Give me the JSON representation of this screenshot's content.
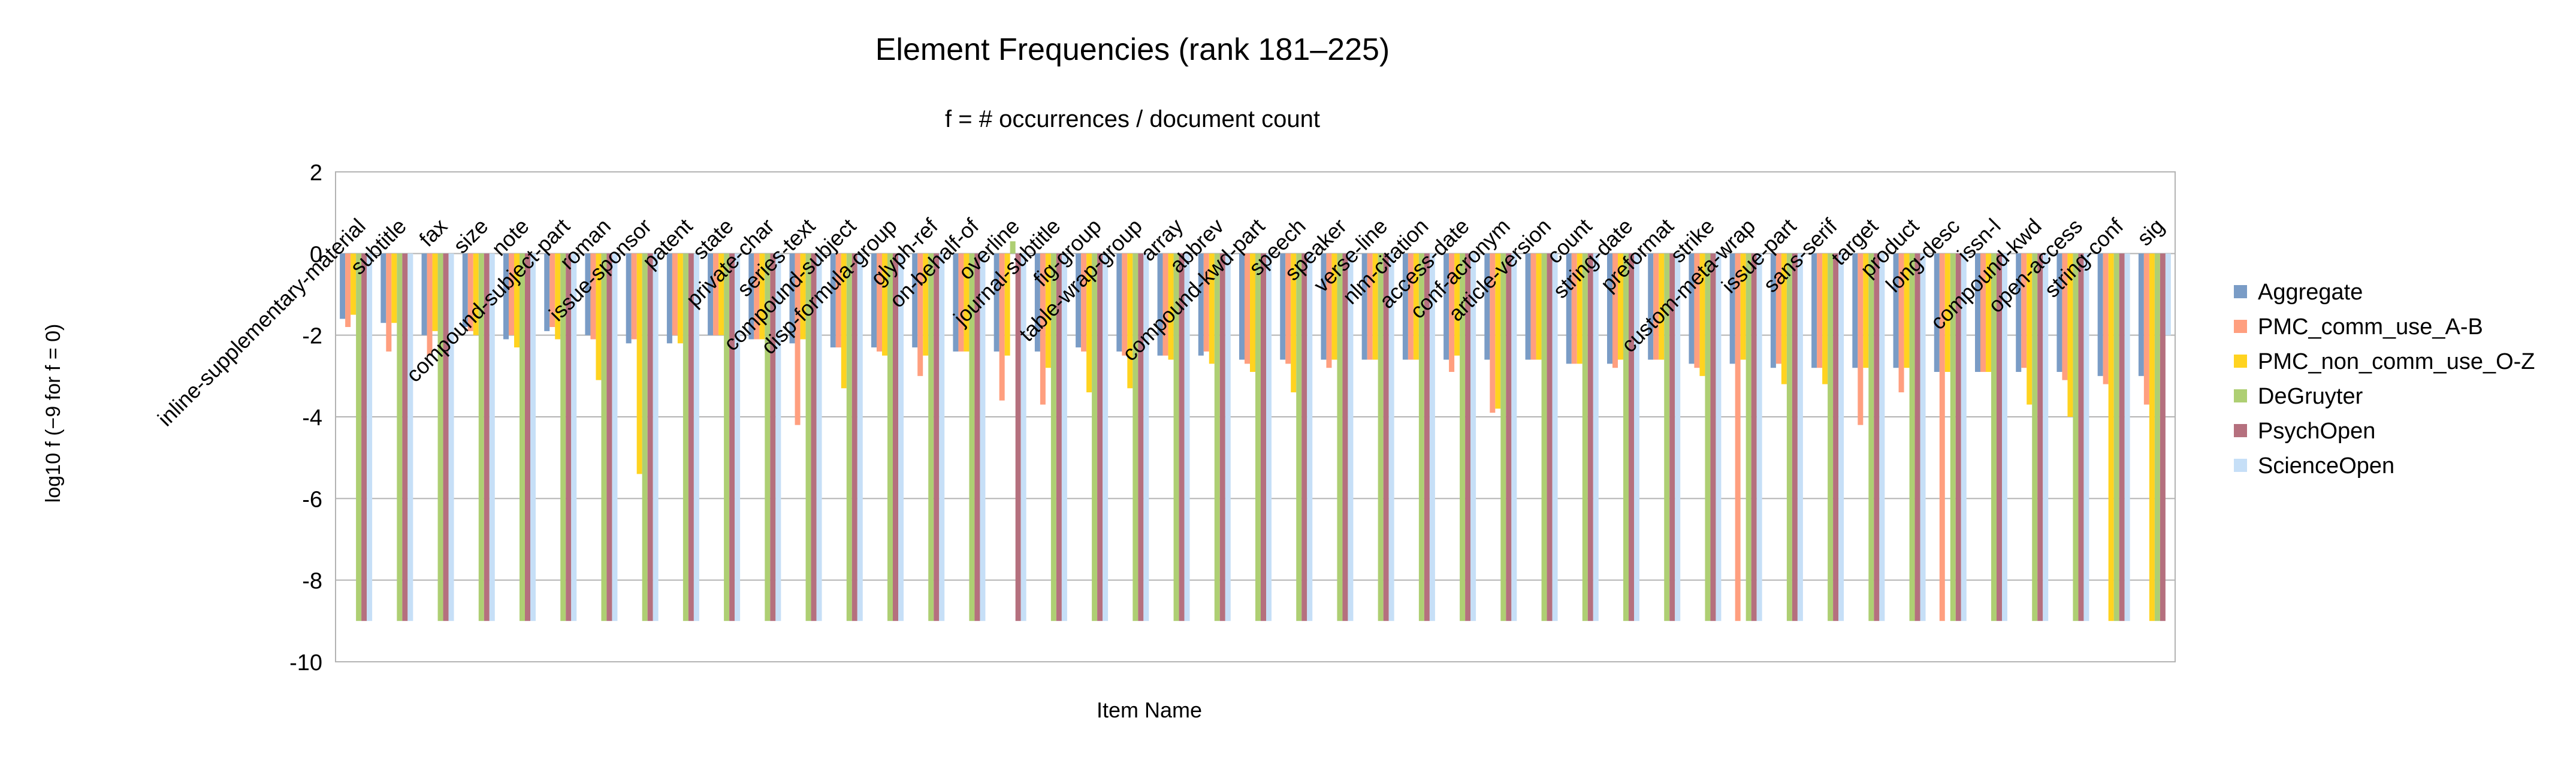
{
  "chart_data": {
    "type": "bar",
    "title": "Element Frequencies (rank 181–225)",
    "subtitle": "f = # occurrences / document count",
    "xlabel": "Item Name",
    "ylabel": "log10  f  (−9 for f = 0)",
    "ylim": [
      -10,
      2
    ],
    "yticks": [
      2,
      0,
      -2,
      -4,
      -6,
      -8,
      -10
    ],
    "grid": true,
    "legend_position": "right",
    "categories": [
      "inline-supplementary-material",
      "subtitle",
      "fax",
      "size",
      "note",
      "compound-subject-part",
      "roman",
      "issue-sponsor",
      "patent",
      "state",
      "private-char",
      "series-text",
      "compound-subject",
      "disp-formula-group",
      "glyph-ref",
      "on-behalf-of",
      "overline",
      "journal-subtitle",
      "fig-group",
      "table-wrap-group",
      "array",
      "abbrev",
      "compound-kwd-part",
      "speech",
      "speaker",
      "verse-line",
      "nlm-citation",
      "access-date",
      "conf-acronym",
      "article-version",
      "count",
      "string-date",
      "preformat",
      "strike",
      "custom-meta-wrap",
      "issue-part",
      "sans-serif",
      "target",
      "product",
      "long-desc",
      "issn-l",
      "compound-kwd",
      "open-access",
      "string-conf",
      "sig"
    ],
    "series": [
      {
        "name": "Aggregate",
        "color": "#7a9cc6",
        "values": [
          -1.6,
          -1.7,
          -2.0,
          -1.8,
          -2.1,
          -1.9,
          -2.0,
          -2.2,
          -2.2,
          -2.0,
          -2.1,
          -2.2,
          -2.3,
          -2.3,
          -2.3,
          -2.4,
          -2.4,
          -2.4,
          -2.3,
          -2.4,
          -2.5,
          -2.5,
          -2.6,
          -2.6,
          -2.6,
          -2.6,
          -2.6,
          -2.6,
          -2.6,
          -2.6,
          -2.7,
          -2.7,
          -2.6,
          -2.7,
          -2.7,
          -2.8,
          -2.8,
          -2.8,
          -2.8,
          -2.9,
          -2.9,
          -2.9,
          -2.9,
          -3.0,
          -3.0
        ]
      },
      {
        "name": "PMC_comm_use_A-B",
        "color": "#ff9f7f",
        "values": [
          -1.8,
          -2.4,
          -2.5,
          -1.9,
          -2.0,
          -1.8,
          -2.1,
          -2.1,
          -2.0,
          -2.0,
          -2.1,
          -4.2,
          -2.3,
          -2.4,
          -3.0,
          -2.4,
          -3.6,
          -3.7,
          -2.4,
          -2.5,
          -2.5,
          -2.4,
          -2.7,
          -2.7,
          -2.8,
          -2.6,
          -2.6,
          -2.9,
          -3.9,
          -2.6,
          -2.7,
          -2.8,
          -2.6,
          -2.8,
          -9.0,
          -2.7,
          -2.8,
          -4.2,
          -3.4,
          -9.0,
          -2.9,
          -2.8,
          -3.1,
          -3.2,
          -3.7
        ]
      },
      {
        "name": "PMC_non_comm_use_O-Z",
        "color": "#ffd320",
        "values": [
          -1.5,
          -1.7,
          -1.9,
          -2.0,
          -2.3,
          -2.1,
          -3.1,
          -5.4,
          -2.2,
          -2.0,
          -2.1,
          -2.1,
          -3.3,
          -2.5,
          -2.5,
          -2.4,
          -2.5,
          -2.8,
          -3.4,
          -3.3,
          -2.6,
          -2.7,
          -2.9,
          -3.4,
          -2.6,
          -2.6,
          -2.6,
          -2.5,
          -3.8,
          -2.6,
          -2.7,
          -2.6,
          -2.6,
          -3.0,
          -2.6,
          -3.2,
          -3.2,
          -2.8,
          -2.8,
          -2.9,
          -2.9,
          -3.7,
          -4.0,
          -9.0,
          -9.0
        ]
      },
      {
        "name": "DeGruyter",
        "color": "#aecf73",
        "values": [
          -9.0,
          -9.0,
          -9.0,
          -9.0,
          -9.0,
          -9.0,
          -9.0,
          -9.0,
          -9.0,
          -9.0,
          -9.0,
          -9.0,
          -9.0,
          -9.0,
          -9.0,
          -9.0,
          0.3,
          -9.0,
          -9.0,
          -9.0,
          -9.0,
          -9.0,
          -9.0,
          -9.0,
          -9.0,
          -9.0,
          -9.0,
          -9.0,
          -9.0,
          -9.0,
          -9.0,
          -9.0,
          -9.0,
          -9.0,
          -9.0,
          -9.0,
          -9.0,
          -9.0,
          -9.0,
          -9.0,
          -9.0,
          -9.0,
          -9.0,
          -9.0,
          -9.0
        ]
      },
      {
        "name": "PsychOpen",
        "color": "#b5707e",
        "values": [
          -9.0,
          -9.0,
          -9.0,
          -9.0,
          -9.0,
          -9.0,
          -9.0,
          -9.0,
          -9.0,
          -9.0,
          -9.0,
          -9.0,
          -9.0,
          -9.0,
          -9.0,
          -9.0,
          -9.0,
          -9.0,
          -9.0,
          -9.0,
          -9.0,
          -9.0,
          -9.0,
          -9.0,
          -9.0,
          -9.0,
          -9.0,
          -9.0,
          -9.0,
          -9.0,
          -9.0,
          -9.0,
          -9.0,
          -9.0,
          -9.0,
          -9.0,
          -9.0,
          -9.0,
          -9.0,
          -9.0,
          -9.0,
          -9.0,
          -9.0,
          -9.0,
          -9.0
        ]
      },
      {
        "name": "ScienceOpen",
        "color": "#c6dff7",
        "values": [
          -9.0,
          -9.0,
          -9.0,
          -9.0,
          -9.0,
          -9.0,
          -9.0,
          -9.0,
          -9.0,
          -9.0,
          -9.0,
          -9.0,
          -9.0,
          -9.0,
          -9.0,
          -9.0,
          -9.0,
          -9.0,
          -9.0,
          -9.0,
          -9.0,
          -9.0,
          -9.0,
          -9.0,
          -9.0,
          -9.0,
          -9.0,
          -9.0,
          -9.0,
          -9.0,
          -9.0,
          -9.0,
          -9.0,
          -9.0,
          -9.0,
          -9.0,
          -9.0,
          -9.0,
          -9.0,
          -9.0,
          -9.0,
          -9.0,
          -9.0,
          -9.0,
          -2.0
        ]
      }
    ]
  }
}
